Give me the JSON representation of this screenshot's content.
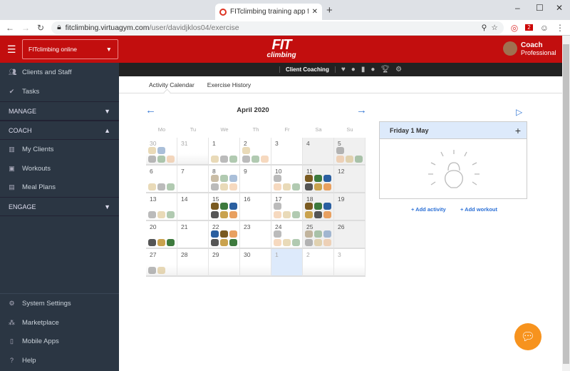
{
  "browser": {
    "tab_title": "FITclimbing training app for spor",
    "url_host": "fitclimbing.virtuagym.com",
    "url_path": "/user/davidjklos04/exercise",
    "ext_badge": "2"
  },
  "header": {
    "club_select": "FITclimbing online",
    "logo_top": "FIT",
    "logo_bottom": "climbing",
    "user_name": "Coach",
    "user_role": "Professional",
    "brand_color": "#c20e0e"
  },
  "sidebar": {
    "items": [
      {
        "label": "Clients and Staff",
        "icon": "users-icon"
      },
      {
        "label": "Tasks",
        "icon": "check-icon"
      }
    ],
    "sections": [
      {
        "label": "MANAGE",
        "state": "collapsed"
      },
      {
        "label": "COACH",
        "state": "expanded"
      },
      {
        "label": "ENGAGE",
        "state": "collapsed"
      }
    ],
    "coach_items": [
      {
        "label": "My Clients",
        "icon": "clients-icon"
      },
      {
        "label": "Workouts",
        "icon": "kettlebell-icon"
      },
      {
        "label": "Meal Plans",
        "icon": "meal-icon"
      }
    ],
    "bottom_items": [
      {
        "label": "System Settings",
        "icon": "gear-icon"
      },
      {
        "label": "Marketplace",
        "icon": "marketplace-icon"
      },
      {
        "label": "Mobile Apps",
        "icon": "mobile-icon"
      },
      {
        "label": "Help",
        "icon": "help-icon"
      }
    ]
  },
  "subnav": {
    "label": "Client Coaching",
    "icons": [
      "heart-icon",
      "kettlebell-icon",
      "chart-icon",
      "apple-icon",
      "trophy-icon",
      "gear-icon"
    ]
  },
  "tabs": [
    {
      "label": "Activity Calendar",
      "active": true
    },
    {
      "label": "Exercise History",
      "active": false
    }
  ],
  "calendar": {
    "month": "April 2020",
    "weekdays": [
      "Mo",
      "Tu",
      "We",
      "Th",
      "Fr",
      "Sa",
      "Su"
    ],
    "icon_colors": {
      "weights": "#555555",
      "bench": "#c9a24e",
      "jump": "#3d7a3d",
      "climber": "#2a5fa0",
      "arm": "#e8a060",
      "rock": "#7a5a20"
    },
    "weeks": [
      [
        {
          "day": "30",
          "muted": true,
          "rows": [
            [
              "bench",
              "climber"
            ],
            [
              "weights",
              "jump",
              "arm"
            ]
          ],
          "faded": true
        },
        {
          "day": "31",
          "muted": true,
          "rows": []
        },
        {
          "day": "1",
          "rows": [
            [],
            [
              "bench",
              "weights",
              "jump"
            ]
          ],
          "faded": true
        },
        {
          "day": "2",
          "rows": [
            [
              "bench"
            ],
            [
              "weights",
              "jump",
              "arm"
            ]
          ],
          "faded": true
        },
        {
          "day": "3",
          "rows": []
        },
        {
          "day": "4",
          "rows": []
        },
        {
          "day": "5",
          "rows": [
            [
              "weights"
            ],
            [
              "arm",
              "bench",
              "jump"
            ]
          ],
          "faded": true
        }
      ],
      [
        {
          "day": "6",
          "rows": [
            [],
            [
              "bench",
              "weights",
              "jump"
            ]
          ],
          "faded": true
        },
        {
          "day": "7",
          "rows": []
        },
        {
          "day": "8",
          "rows": [
            [
              "rock",
              "jump",
              "climber"
            ],
            [
              "weights",
              "bench",
              "arm"
            ]
          ],
          "faded": true
        },
        {
          "day": "9",
          "rows": []
        },
        {
          "day": "10",
          "rows": [
            [
              "weights"
            ],
            [
              "arm",
              "bench",
              "jump"
            ]
          ],
          "faded": true
        },
        {
          "day": "11",
          "rows": [
            [
              "rock",
              "jump",
              "climber"
            ],
            [
              "weights",
              "bench",
              "arm"
            ]
          ],
          "faded": false
        },
        {
          "day": "12",
          "rows": []
        }
      ],
      [
        {
          "day": "13",
          "rows": [
            [],
            [
              "weights",
              "bench",
              "jump"
            ]
          ],
          "faded": true
        },
        {
          "day": "14",
          "rows": []
        },
        {
          "day": "15",
          "rows": [
            [
              "rock",
              "jump",
              "climber"
            ],
            [
              "weights",
              "bench",
              "arm"
            ]
          ],
          "faded": false
        },
        {
          "day": "16",
          "rows": []
        },
        {
          "day": "17",
          "rows": [
            [
              "weights"
            ],
            [
              "arm",
              "bench",
              "jump"
            ]
          ],
          "faded": true
        },
        {
          "day": "18",
          "rows": [
            [
              "rock",
              "jump",
              "climber"
            ],
            [
              "bench",
              "weights",
              "arm"
            ]
          ],
          "faded": false
        },
        {
          "day": "19",
          "rows": []
        }
      ],
      [
        {
          "day": "20",
          "rows": [
            [],
            [
              "weights",
              "bench",
              "jump"
            ]
          ],
          "faded": false
        },
        {
          "day": "21",
          "rows": []
        },
        {
          "day": "22",
          "rows": [
            [
              "climber",
              "rock",
              "arm"
            ],
            [
              "weights",
              "bench",
              "jump"
            ]
          ],
          "faded": false
        },
        {
          "day": "23",
          "rows": []
        },
        {
          "day": "24",
          "rows": [
            [
              "weights"
            ],
            [
              "arm",
              "bench",
              "jump"
            ]
          ],
          "faded": true
        },
        {
          "day": "25",
          "rows": [
            [
              "rock",
              "jump",
              "climber"
            ],
            [
              "weights",
              "bench",
              "arm"
            ]
          ],
          "faded": true
        },
        {
          "day": "26",
          "rows": []
        }
      ],
      [
        {
          "day": "27",
          "rows": [
            [],
            [
              "weights",
              "bench"
            ]
          ],
          "faded": true
        },
        {
          "day": "28",
          "rows": []
        },
        {
          "day": "29",
          "rows": []
        },
        {
          "day": "30",
          "rows": []
        },
        {
          "day": "1",
          "muted": true,
          "selected": true,
          "rows": []
        },
        {
          "day": "2",
          "muted": true,
          "rows": []
        },
        {
          "day": "3",
          "muted": true,
          "rows": []
        }
      ]
    ]
  },
  "day_panel": {
    "title": "Friday 1 May",
    "add_activity": "+ Add activity",
    "add_workout": "+ Add workout"
  }
}
